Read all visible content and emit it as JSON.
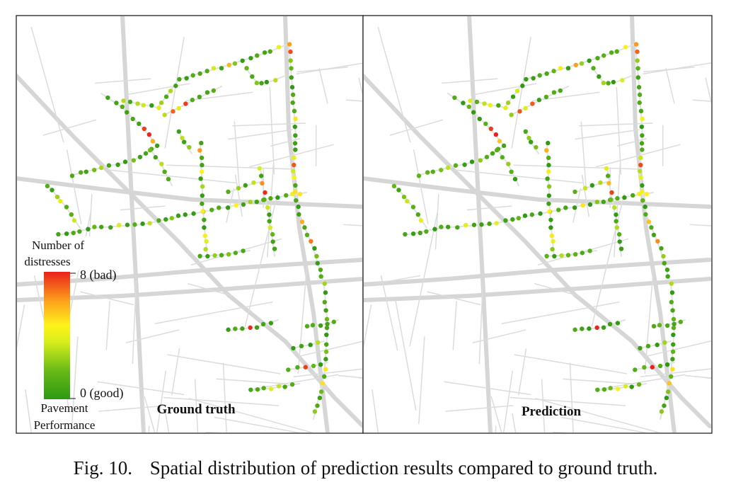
{
  "figure": {
    "caption_label": "Fig. 10.",
    "caption_text": "Spatial distribution of prediction results compared to ground truth."
  },
  "legend": {
    "title_line1": "Number of",
    "title_line2": "distresses",
    "max_label": "8 (bad)",
    "min_label": "0 (good)",
    "subtitle_line1": "Pavement",
    "subtitle_line2": "Performance",
    "colors": {
      "good": "#2e9a12",
      "mid": "#fff21a",
      "bad": "#e8211b"
    }
  },
  "chart_data": {
    "type": "scatter",
    "color_scale": {
      "min": 0,
      "max": 8,
      "min_label": "0 (good)",
      "max_label": "8 (bad)"
    },
    "panels": [
      {
        "title": "Ground truth"
      },
      {
        "title": "Prediction"
      }
    ]
  }
}
